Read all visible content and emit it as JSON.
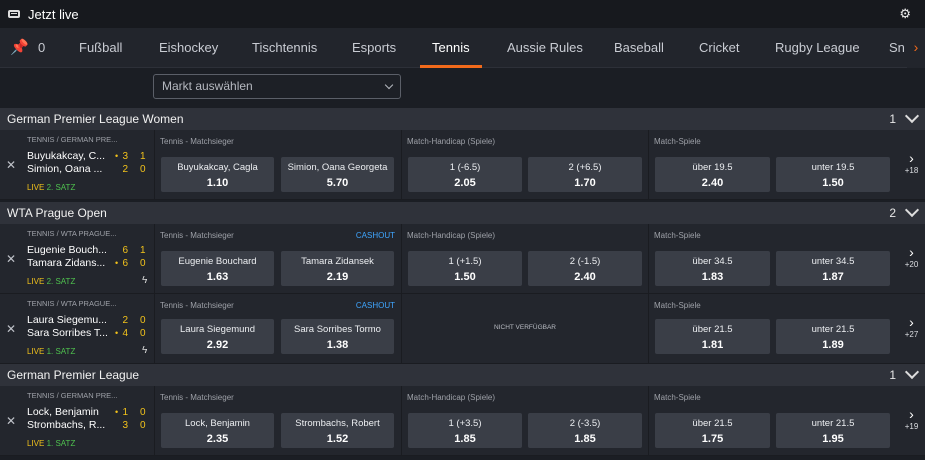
{
  "header": {
    "title": "Jetzt live",
    "icon": "tv-icon",
    "settings_icon": "gear-icon"
  },
  "tabs": {
    "pin_count": "0",
    "items": [
      {
        "label": "Fußball"
      },
      {
        "label": "Eishockey"
      },
      {
        "label": "Tischtennis"
      },
      {
        "label": "Esports"
      },
      {
        "label": "Tennis",
        "active": true
      },
      {
        "label": "Aussie Rules"
      },
      {
        "label": "Baseball"
      },
      {
        "label": "Cricket"
      },
      {
        "label": "Rugby League"
      },
      {
        "label": "Sn"
      }
    ],
    "next_arrow": "›"
  },
  "market_select": {
    "placeholder": "Markt auswählen"
  },
  "colors": {
    "accent": "#f26a1b",
    "score": "#f2c21b",
    "set": "#4fc24f",
    "cashout": "#3fa6ff"
  },
  "leagues": [
    {
      "name": "German Premier League Women",
      "count": "1",
      "events": [
        {
          "competition": "TENNIS / GERMAN PRE...",
          "team1": "Buyukakcay, C...",
          "team2": "Simion, Oana ...",
          "serve1": "•",
          "serve2": "",
          "games1": "3",
          "games2": "2",
          "sets1": "1",
          "sets2": "0",
          "live": "LIVE",
          "set_label": "2. SATZ",
          "bolt": false,
          "m1": {
            "title": "Tennis - Matchsieger",
            "cashout": "",
            "o1": {
              "label": "Buyukakcay, Cagla",
              "value": "1.10"
            },
            "o2": {
              "label": "Simion, Oana Georgeta",
              "value": "5.70"
            }
          },
          "m2": {
            "title": "Match-Handicap (Spiele)",
            "na": "",
            "o1": {
              "label": "1 (-6.5)",
              "value": "2.05"
            },
            "o2": {
              "label": "2 (+6.5)",
              "value": "1.70"
            }
          },
          "m3": {
            "title": "Match-Spiele",
            "o1": {
              "label": "über 19.5",
              "value": "2.40"
            },
            "o2": {
              "label": "unter 19.5",
              "value": "1.50"
            }
          },
          "more": "+18"
        }
      ]
    },
    {
      "name": "WTA Prague Open",
      "count": "2",
      "events": [
        {
          "competition": "TENNIS / WTA PRAGUE...",
          "team1": "Eugenie Bouch...",
          "team2": "Tamara Zidans...",
          "serve1": "",
          "serve2": "•",
          "games1": "6",
          "games2": "6",
          "sets1": "1",
          "sets2": "0",
          "live": "LIVE",
          "set_label": "2. SATZ",
          "bolt": true,
          "m1": {
            "title": "Tennis - Matchsieger",
            "cashout": "CASHOUT",
            "o1": {
              "label": "Eugenie Bouchard",
              "value": "1.63"
            },
            "o2": {
              "label": "Tamara Zidansek",
              "value": "2.19"
            }
          },
          "m2": {
            "title": "Match-Handicap (Spiele)",
            "na": "",
            "o1": {
              "label": "1 (+1.5)",
              "value": "1.50"
            },
            "o2": {
              "label": "2 (-1.5)",
              "value": "2.40"
            }
          },
          "m3": {
            "title": "Match-Spiele",
            "o1": {
              "label": "über 34.5",
              "value": "1.83"
            },
            "o2": {
              "label": "unter 34.5",
              "value": "1.87"
            }
          },
          "more": "+20"
        },
        {
          "competition": "TENNIS / WTA PRAGUE...",
          "team1": "Laura Siegemu...",
          "team2": "Sara Sorribes T...",
          "serve1": "",
          "serve2": "•",
          "games1": "2",
          "games2": "4",
          "sets1": "0",
          "sets2": "0",
          "live": "LIVE",
          "set_label": "1. SATZ",
          "bolt": true,
          "m1": {
            "title": "Tennis - Matchsieger",
            "cashout": "CASHOUT",
            "o1": {
              "label": "Laura Siegemund",
              "value": "2.92"
            },
            "o2": {
              "label": "Sara Sorribes Tormo",
              "value": "1.38"
            }
          },
          "m2": {
            "title": "",
            "na": "NICHT VERFÜGBAR"
          },
          "m3": {
            "title": "Match-Spiele",
            "o1": {
              "label": "über 21.5",
              "value": "1.81"
            },
            "o2": {
              "label": "unter 21.5",
              "value": "1.89"
            }
          },
          "more": "+27"
        }
      ]
    },
    {
      "name": "German Premier League",
      "count": "1",
      "events": [
        {
          "competition": "TENNIS / GERMAN PRE...",
          "team1": "Lock, Benjamin",
          "team2": "Strombachs, R...",
          "serve1": "•",
          "serve2": "",
          "games1": "1",
          "games2": "3",
          "sets1": "0",
          "sets2": "0",
          "live": "LIVE",
          "set_label": "1. SATZ",
          "bolt": false,
          "m1": {
            "title": "Tennis - Matchsieger",
            "cashout": "",
            "o1": {
              "label": "Lock, Benjamin",
              "value": "2.35"
            },
            "o2": {
              "label": "Strombachs, Robert",
              "value": "1.52"
            }
          },
          "m2": {
            "title": "Match-Handicap (Spiele)",
            "na": "",
            "o1": {
              "label": "1 (+3.5)",
              "value": "1.85"
            },
            "o2": {
              "label": "2 (-3.5)",
              "value": "1.85"
            }
          },
          "m3": {
            "title": "Match-Spiele",
            "o1": {
              "label": "über 21.5",
              "value": "1.75"
            },
            "o2": {
              "label": "unter 21.5",
              "value": "1.95"
            }
          },
          "more": "+19"
        }
      ]
    }
  ]
}
